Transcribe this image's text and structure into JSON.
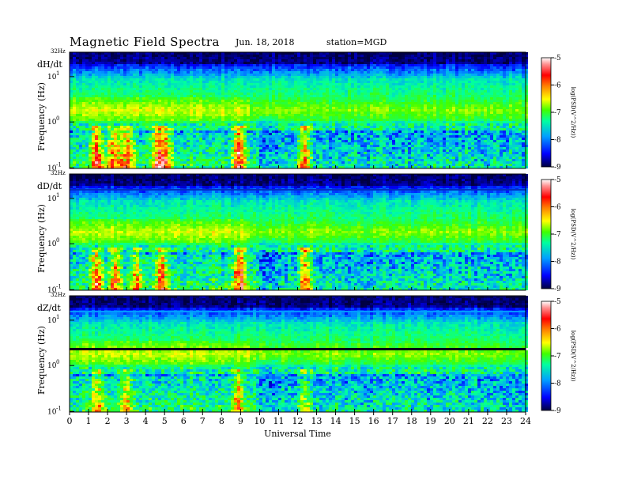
{
  "header": {
    "title": "Magnetic Field Spectra",
    "date": "Jun. 18, 2018",
    "station": "station=MGD"
  },
  "chart_data": [
    {
      "type": "heatmap",
      "panel_label": "dH/dt",
      "ylabel": "Frequency  (Hz)",
      "top_freq_label": "32Hz",
      "ytick_labels": [
        "10^1",
        "10^0",
        "10^-1"
      ],
      "xlabel": "",
      "xlim": [
        0,
        24
      ],
      "colorbar": {
        "range": [
          -9,
          -5
        ],
        "ticks": [
          "-5",
          "-6",
          "-7",
          "-8",
          "-9"
        ],
        "label": "log(PSD(V^2/Hz))"
      },
      "bursts": [
        {
          "t": 1.4,
          "intensity": 0.9
        },
        {
          "t": 2.3,
          "intensity": 0.8
        },
        {
          "t": 3.0,
          "intensity": 0.85
        },
        {
          "t": 4.6,
          "intensity": 0.75
        },
        {
          "t": 5.0,
          "intensity": 0.8
        },
        {
          "t": 8.9,
          "intensity": 1.0
        },
        {
          "t": 12.3,
          "intensity": 0.85
        }
      ]
    },
    {
      "type": "heatmap",
      "panel_label": "dD/dt",
      "ylabel": "Frequency  (Hz)",
      "top_freq_label": "32Hz",
      "ytick_labels": [
        "10^1",
        "10^0",
        "10^-1"
      ],
      "xlabel": "",
      "xlim": [
        0,
        24
      ],
      "colorbar": {
        "range": [
          -9,
          -5
        ],
        "ticks": [
          "-5",
          "-6",
          "-7",
          "-8",
          "-9"
        ],
        "label": "log(PSD(V^2/Hz))"
      },
      "bursts": [
        {
          "t": 1.4,
          "intensity": 0.8
        },
        {
          "t": 2.4,
          "intensity": 0.75
        },
        {
          "t": 3.5,
          "intensity": 0.7
        },
        {
          "t": 4.8,
          "intensity": 0.85
        },
        {
          "t": 8.9,
          "intensity": 1.0
        },
        {
          "t": 12.3,
          "intensity": 0.85
        }
      ]
    },
    {
      "type": "heatmap",
      "panel_label": "dZ/dt",
      "ylabel": "Frequency  (Hz)",
      "top_freq_label": "32Hz",
      "ytick_labels": [
        "10^1",
        "10^0",
        "10^-1"
      ],
      "xlabel": "Universal  Time",
      "xticks": [
        "0",
        "1",
        "2",
        "3",
        "4",
        "5",
        "6",
        "7",
        "8",
        "9",
        "10",
        "11",
        "12",
        "13",
        "14",
        "15",
        "16",
        "17",
        "18",
        "19",
        "20",
        "21",
        "22",
        "23",
        "24"
      ],
      "xlim": [
        0,
        24
      ],
      "colorbar": {
        "range": [
          -9,
          -5
        ],
        "ticks": [
          "-5",
          "-6",
          "-7",
          "-8",
          "-9"
        ],
        "label": "log(PSD(V^2/Hz))"
      },
      "bursts": [
        {
          "t": 1.5,
          "intensity": 0.55
        },
        {
          "t": 3.0,
          "intensity": 0.55
        },
        {
          "t": 8.8,
          "intensity": 0.65
        },
        {
          "t": 12.3,
          "intensity": 0.5
        }
      ]
    }
  ],
  "colorscale": [
    "#000040",
    "#0000ff",
    "#00a0ff",
    "#00ffa0",
    "#40ff00",
    "#ffff00",
    "#ff8000",
    "#ff0000",
    "#ff9090",
    "#ffffff"
  ]
}
